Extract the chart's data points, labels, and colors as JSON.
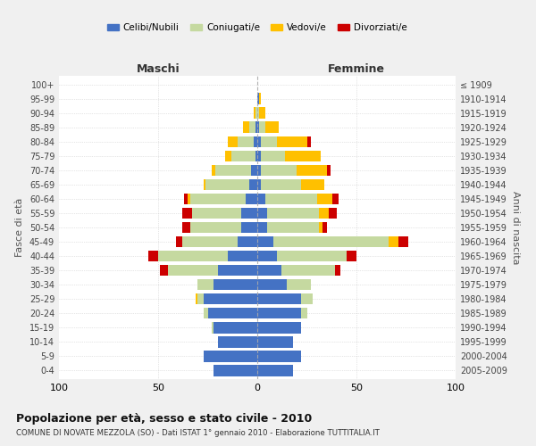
{
  "age_groups": [
    "0-4",
    "5-9",
    "10-14",
    "15-19",
    "20-24",
    "25-29",
    "30-34",
    "35-39",
    "40-44",
    "45-49",
    "50-54",
    "55-59",
    "60-64",
    "65-69",
    "70-74",
    "75-79",
    "80-84",
    "85-89",
    "90-94",
    "95-99",
    "100+"
  ],
  "birth_years": [
    "2005-2009",
    "2000-2004",
    "1995-1999",
    "1990-1994",
    "1985-1989",
    "1980-1984",
    "1975-1979",
    "1970-1974",
    "1965-1969",
    "1960-1964",
    "1955-1959",
    "1950-1954",
    "1945-1949",
    "1940-1944",
    "1935-1939",
    "1930-1934",
    "1925-1929",
    "1920-1924",
    "1915-1919",
    "1910-1914",
    "≤ 1909"
  ],
  "male": {
    "celibi": [
      22,
      27,
      20,
      22,
      25,
      27,
      22,
      20,
      15,
      10,
      8,
      8,
      6,
      4,
      3,
      1,
      2,
      1,
      0,
      0,
      0
    ],
    "coniugati": [
      0,
      0,
      0,
      1,
      2,
      3,
      8,
      25,
      35,
      28,
      26,
      25,
      28,
      22,
      18,
      12,
      8,
      3,
      1,
      0,
      0
    ],
    "vedovi": [
      0,
      0,
      0,
      0,
      0,
      1,
      0,
      0,
      0,
      0,
      0,
      0,
      1,
      1,
      2,
      3,
      5,
      3,
      1,
      0,
      0
    ],
    "divorziati": [
      0,
      0,
      0,
      0,
      0,
      0,
      0,
      4,
      5,
      3,
      4,
      5,
      2,
      0,
      0,
      0,
      0,
      0,
      0,
      0,
      0
    ]
  },
  "female": {
    "nubili": [
      18,
      22,
      18,
      22,
      22,
      22,
      15,
      12,
      10,
      8,
      5,
      5,
      4,
      2,
      2,
      2,
      2,
      1,
      0,
      1,
      0
    ],
    "coniugate": [
      0,
      0,
      0,
      0,
      3,
      6,
      12,
      27,
      35,
      58,
      26,
      26,
      26,
      20,
      18,
      12,
      8,
      3,
      1,
      0,
      0
    ],
    "vedove": [
      0,
      0,
      0,
      0,
      0,
      0,
      0,
      0,
      0,
      5,
      2,
      5,
      8,
      12,
      15,
      18,
      15,
      7,
      3,
      1,
      0
    ],
    "divorziate": [
      0,
      0,
      0,
      0,
      0,
      0,
      0,
      3,
      5,
      5,
      2,
      4,
      3,
      0,
      2,
      0,
      2,
      0,
      0,
      0,
      0
    ]
  },
  "colors": {
    "celibi": "#4472c4",
    "coniugati": "#c5d9a0",
    "vedovi": "#ffc000",
    "divorziati": "#cc0000"
  },
  "xlim": 100,
  "title": "Popolazione per età, sesso e stato civile - 2010",
  "subtitle": "COMUNE DI NOVATE MEZZOLA (SO) - Dati ISTAT 1° gennaio 2010 - Elaborazione TUTTITALIA.IT",
  "ylabel_left": "Fasce di età",
  "ylabel_right": "Anni di nascita",
  "xlabel_left": "Maschi",
  "xlabel_right": "Femmine",
  "legend_labels": [
    "Celibi/Nubili",
    "Coniugati/e",
    "Vedovi/e",
    "Divorziati/e"
  ],
  "bg_color": "#f0f0f0",
  "plot_bg_color": "#ffffff"
}
